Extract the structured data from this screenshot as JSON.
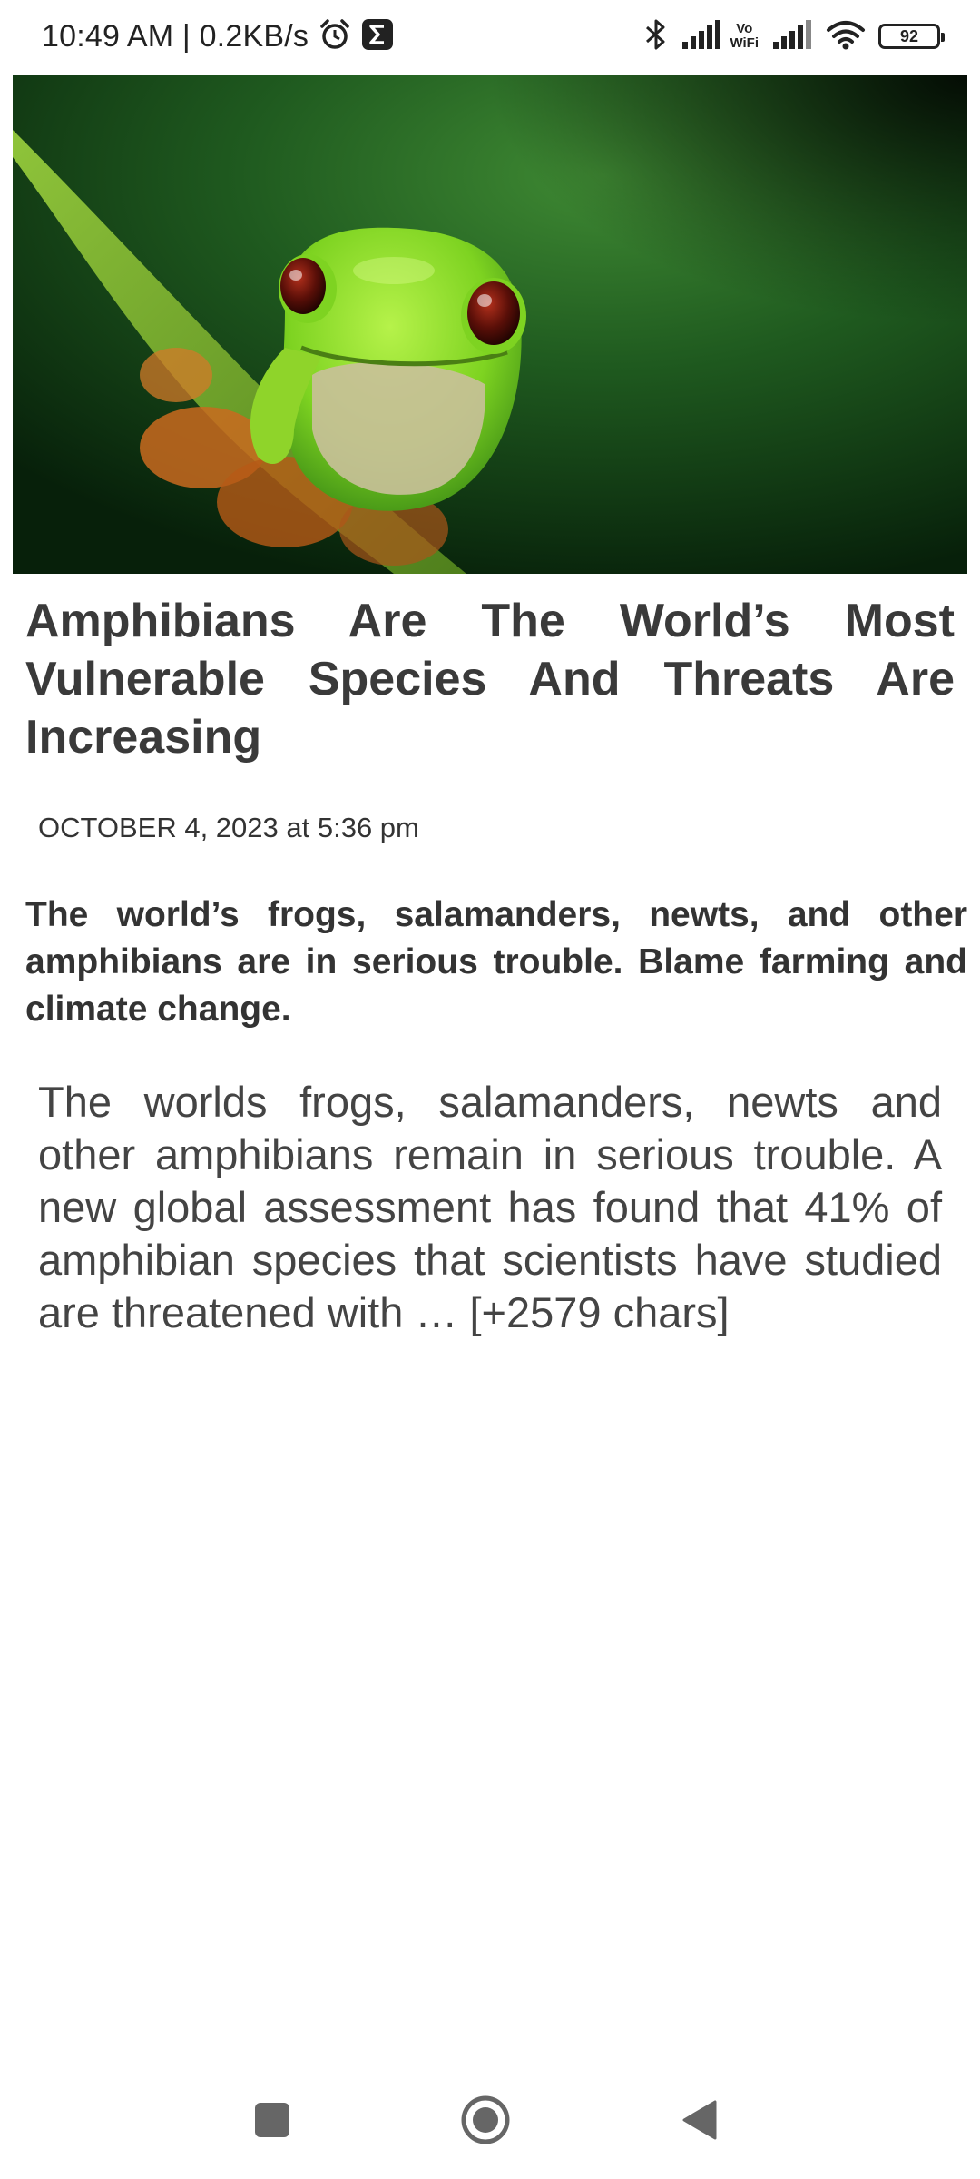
{
  "status_bar": {
    "time_speed": "10:49 AM | 0.2KB/s",
    "icons": [
      "alarm-icon",
      "sigma-notification-icon",
      "bluetooth-icon",
      "signal-icon",
      "vowifi-icon",
      "signal-icon",
      "wifi-icon",
      "battery-icon"
    ],
    "vowifi_top": "Vo",
    "vowifi_bottom": "WiFi",
    "battery_level": "92"
  },
  "article": {
    "image_alt_icon": "frog-photo",
    "headline": "Amphibians Are The World’s Most Vulnerable Species And Threats Are Increasing",
    "timestamp": "OCTOBER 4, 2023 at 5:36 pm",
    "summary": "The world’s frogs, salamanders, newts, and other amphibians are in serious trouble. Blame farming and climate change.",
    "body": "The worlds frogs, salamanders, newts and other amphibians remain in serious trouble. A new global assessment has found that 41% of amphibian species that scientists have studied are threatened with … [+2579 chars]"
  },
  "nav_bar": {
    "icons": [
      "recents-square-icon",
      "home-circle-icon",
      "back-triangle-icon"
    ]
  },
  "colors": {
    "text_dark": "#333333",
    "headline": "#3a3a3a",
    "frog_green": "#7ed321",
    "background": "#ffffff"
  }
}
